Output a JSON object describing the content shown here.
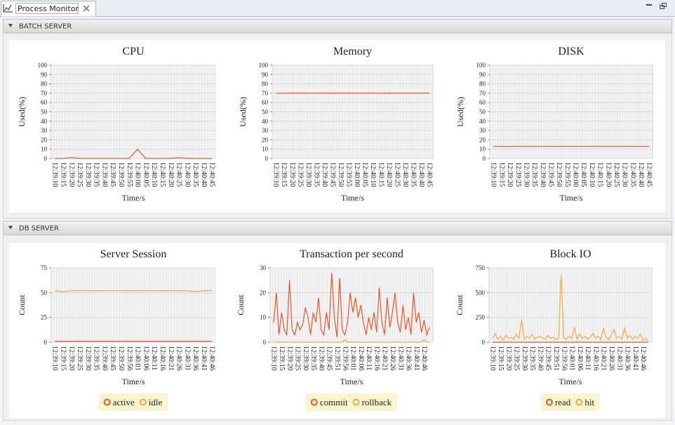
{
  "tab": {
    "title": "Process Monitor"
  },
  "sections": [
    {
      "title": "BATCH SERVER"
    },
    {
      "title": "DB SERVER"
    }
  ],
  "chart_data": [
    {
      "type": "line",
      "title": "CPU",
      "y_label": "Used(%)",
      "x_label": "Time/s",
      "color": "#e4572e",
      "grid": true,
      "categories": [
        "12:39:10",
        "12:39:15",
        "12:39:20",
        "12:39:25",
        "12:39:30",
        "12:39:35",
        "12:39:40",
        "12:39:45",
        "12:39:50",
        "12:39:55",
        "12:40:00",
        "12:40:05",
        "12:40:10",
        "12:40:15",
        "12:40:20",
        "12:40:25",
        "12:40:30",
        "12:40:35",
        "12:40:40",
        "12:40:45"
      ],
      "values": [
        0,
        0,
        1,
        0,
        0,
        0,
        0,
        0,
        0,
        0,
        10,
        0,
        0,
        0,
        0,
        1,
        0,
        0,
        0,
        0
      ],
      "ylim": [
        0,
        100
      ],
      "yticks": [
        0,
        10,
        20,
        30,
        40,
        50,
        60,
        70,
        80,
        90,
        100
      ]
    },
    {
      "type": "line",
      "title": "Memory",
      "y_label": "Used(%)",
      "x_label": "Time/s",
      "color": "#e4572e",
      "grid": true,
      "categories": [
        "12:39:10",
        "12:39:15",
        "12:39:20",
        "12:39:25",
        "12:39:30",
        "12:39:35",
        "12:39:40",
        "12:39:45",
        "12:39:50",
        "12:39:55",
        "12:40:00",
        "12:40:05",
        "12:40:10",
        "12:40:15",
        "12:40:20",
        "12:40:25",
        "12:40:30",
        "12:40:35",
        "12:40:40",
        "12:40:45"
      ],
      "values": [
        70,
        70,
        70,
        70,
        70,
        70,
        70,
        70,
        70,
        70,
        70,
        70,
        70,
        70,
        70,
        70,
        70,
        70,
        70,
        70
      ],
      "ylim": [
        0,
        100
      ],
      "yticks": [
        0,
        10,
        20,
        30,
        40,
        50,
        60,
        70,
        80,
        90,
        100
      ]
    },
    {
      "type": "line",
      "title": "DISK",
      "y_label": "Used(%)",
      "x_label": "Time/s",
      "color": "#e4572e",
      "grid": true,
      "categories": [
        "12:39:10",
        "12:39:15",
        "12:39:20",
        "12:39:25",
        "12:39:30",
        "12:39:35",
        "12:39:40",
        "12:39:45",
        "12:39:50",
        "12:39:55",
        "12:40:00",
        "12:40:05",
        "12:40:10",
        "12:40:15",
        "12:40:20",
        "12:40:25",
        "12:40:30",
        "12:40:35",
        "12:40:40",
        "12:40:45"
      ],
      "values": [
        13,
        13,
        13,
        13,
        13,
        13,
        13,
        13,
        13,
        13,
        13,
        13,
        13,
        13,
        13,
        13,
        13,
        13,
        13,
        13
      ],
      "ylim": [
        0,
        100
      ],
      "yticks": [
        0,
        10,
        20,
        30,
        40,
        50,
        60,
        70,
        80,
        90,
        100
      ]
    },
    {
      "type": "line",
      "title": "Server Session",
      "y_label": "Count",
      "x_label": "Time/s",
      "grid": true,
      "legend": "bottom",
      "categories": [
        "12:39:10",
        "12:39:15",
        "12:39:20",
        "12:39:25",
        "12:39:30",
        "12:39:35",
        "12:39:40",
        "12:39:45",
        "12:39:50",
        "12:39:56",
        "12:40:01",
        "12:40:06",
        "12:40:11",
        "12:40:16",
        "12:40:21",
        "12:40:26",
        "12:40:31",
        "12:40:36",
        "12:40:41",
        "12:40:46"
      ],
      "series": [
        {
          "name": "active",
          "color": "#e4572e",
          "values": [
            1,
            1,
            1,
            1,
            1,
            1,
            1,
            1,
            1,
            1,
            1,
            1,
            1,
            1,
            1,
            1,
            1,
            1,
            1,
            1
          ]
        },
        {
          "name": "idle",
          "color": "#f2a93b",
          "values": [
            52,
            51,
            52,
            52,
            52,
            52,
            52,
            52,
            52,
            52,
            52,
            52,
            52,
            52,
            52,
            52,
            52,
            51,
            52,
            52
          ]
        }
      ],
      "ylim": [
        0,
        75
      ],
      "yticks": [
        0,
        25,
        50,
        75
      ]
    },
    {
      "type": "line",
      "title": "Transaction per second",
      "y_label": "Count",
      "x_label": "Time/s",
      "grid": true,
      "legend": "bottom",
      "categories": [
        "12:39:10",
        null,
        null,
        "12:39:15",
        null,
        null,
        "12:39:20",
        null,
        null,
        "12:39:25",
        null,
        null,
        "12:39:30",
        null,
        null,
        "12:39:35",
        null,
        null,
        "12:39:40",
        null,
        null,
        "12:39:45",
        null,
        null,
        "12:39:51",
        null,
        null,
        "12:39:56",
        null,
        null,
        "12:40:01",
        null,
        null,
        "12:40:06",
        null,
        null,
        "12:40:11",
        null,
        null,
        "12:40:16",
        null,
        null,
        "12:40:21",
        null,
        null,
        "12:40:26",
        null,
        null,
        "12:40:31",
        null,
        null,
        "12:40:36",
        null,
        null,
        "12:40:41",
        null,
        null,
        "12:40:46",
        null,
        null
      ],
      "series": [
        {
          "name": "commit",
          "color": "#e4572e",
          "values": [
            8,
            20,
            3,
            12,
            5,
            3,
            25,
            5,
            3,
            8,
            5,
            7,
            14,
            10,
            3,
            12,
            8,
            18,
            5,
            3,
            12,
            5,
            28,
            10,
            2,
            26,
            5,
            3,
            8,
            20,
            12,
            18,
            10,
            15,
            8,
            3,
            10,
            5,
            12,
            4,
            22,
            8,
            3,
            18,
            6,
            12,
            20,
            8,
            4,
            15,
            5,
            10,
            3,
            20,
            8,
            12,
            4,
            9,
            3,
            6
          ]
        },
        {
          "name": "rollback",
          "color": "#f2a93b",
          "values": [
            0,
            0,
            0,
            0,
            0,
            0,
            0,
            0,
            0,
            0,
            0,
            0,
            0,
            0,
            0,
            0,
            0,
            0,
            0,
            0,
            0,
            0,
            0,
            0,
            0,
            0,
            0,
            1,
            0,
            0,
            0,
            0,
            0,
            0,
            0,
            0,
            0,
            0,
            0,
            0,
            0,
            0,
            0,
            0,
            0,
            0,
            0,
            0,
            0,
            0,
            0,
            0,
            0,
            0,
            0,
            0,
            0,
            1,
            0,
            0
          ]
        }
      ],
      "ylim": [
        0,
        30
      ],
      "yticks": [
        0,
        10,
        20,
        30
      ]
    },
    {
      "type": "line",
      "title": "Block IO",
      "y_label": "Count",
      "x_label": "Time/s",
      "grid": true,
      "legend": "bottom",
      "categories": [
        "12:39:10",
        null,
        null,
        "12:39:15",
        null,
        null,
        "12:39:20",
        null,
        null,
        "12:39:25",
        null,
        null,
        "12:39:30",
        null,
        null,
        "12:39:35",
        null,
        null,
        "12:39:40",
        null,
        null,
        "12:39:45",
        null,
        null,
        "12:39:51",
        null,
        null,
        "12:39:56",
        null,
        null,
        "12:40:01",
        null,
        null,
        "12:40:06",
        null,
        null,
        "12:40:11",
        null,
        null,
        "12:40:16",
        null,
        null,
        "12:40:21",
        null,
        null,
        "12:40:26",
        null,
        null,
        "12:40:31",
        null,
        null,
        "12:40:36",
        null,
        null,
        "12:40:41",
        null,
        null,
        "12:40:46",
        null,
        null
      ],
      "series": [
        {
          "name": "read",
          "color": "#e4572e",
          "values": [
            0,
            0,
            0,
            0,
            0,
            0,
            0,
            0,
            0,
            0,
            0,
            0,
            0,
            0,
            0,
            0,
            0,
            0,
            0,
            0,
            0,
            0,
            0,
            0,
            0,
            0,
            0,
            0,
            0,
            0,
            0,
            0,
            0,
            0,
            0,
            0,
            0,
            0,
            0,
            0,
            0,
            0,
            0,
            0,
            0,
            0,
            0,
            0,
            0,
            0,
            0,
            0,
            0,
            0,
            0,
            0,
            0,
            0,
            0,
            0
          ]
        },
        {
          "name": "hit",
          "color": "#f2a93b",
          "values": [
            40,
            90,
            30,
            60,
            20,
            70,
            40,
            50,
            30,
            80,
            40,
            230,
            30,
            60,
            40,
            80,
            30,
            50,
            60,
            40,
            30,
            70,
            40,
            50,
            30,
            40,
            680,
            40,
            30,
            60,
            40,
            150,
            30,
            80,
            40,
            60,
            30,
            50,
            90,
            40,
            60,
            30,
            140,
            50,
            30,
            80,
            130,
            40,
            60,
            30,
            150,
            40,
            70,
            30,
            60,
            40,
            80,
            20,
            40,
            10
          ]
        }
      ],
      "ylim": [
        0,
        750
      ],
      "yticks": [
        0,
        250,
        500,
        750
      ]
    }
  ]
}
